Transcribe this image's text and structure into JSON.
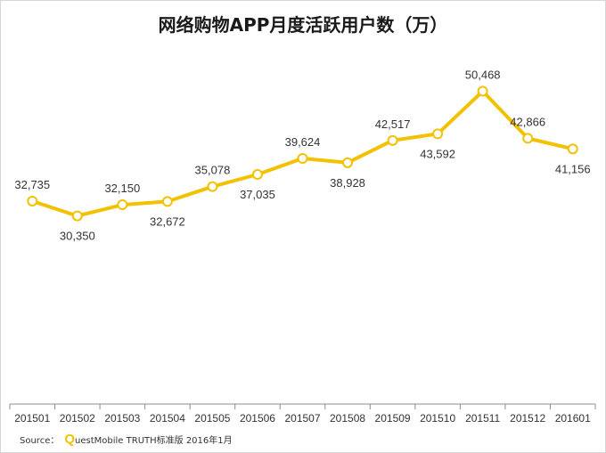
{
  "chart_data": {
    "type": "line",
    "title": "网络购物APP月度活跃用户数（万）",
    "categories": [
      "201501",
      "201502",
      "201503",
      "201504",
      "201505",
      "201506",
      "201507",
      "201508",
      "201509",
      "201510",
      "201511",
      "201512",
      "201601"
    ],
    "series": [
      {
        "values": [
          32735,
          30350,
          32150,
          32672,
          35078,
          37035,
          39624,
          38928,
          42517,
          43592,
          50468,
          42866,
          41156
        ]
      }
    ],
    "data_labels": [
      "32,735",
      "30,350",
      "32,150",
      "32,672",
      "35,078",
      "37,035",
      "39,624",
      "38,928",
      "42,517",
      "43,592",
      "50,468",
      "42,866",
      "41,156"
    ],
    "ylim": [
      0,
      58000
    ],
    "line_color": "#f2c200",
    "grid": false,
    "legend": "none"
  },
  "source": {
    "label": "Source：",
    "logo_letter": "Q",
    "text": "uestMobile  TRUTH标准版  2016年1月"
  }
}
